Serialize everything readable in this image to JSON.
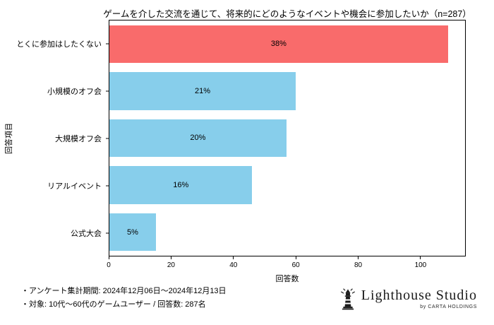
{
  "chart_data": {
    "type": "bar",
    "orientation": "horizontal",
    "title": "ゲームを介した交流を通じて、将来的にどのようなイベントや機会に参加したいか（n=287）",
    "xlabel": "回答数",
    "ylabel": "回答項目",
    "total_n": 287,
    "xlim": [
      0,
      114.5
    ],
    "xticks": [
      0,
      20,
      40,
      60,
      80,
      100
    ],
    "categories": [
      "とくに参加はしたくない",
      "小規模のオフ会",
      "大規模オフ会",
      "リアルイベント",
      "公式大会"
    ],
    "values": [
      109,
      60,
      57,
      46,
      15
    ],
    "percent_labels": [
      "38%",
      "21%",
      "20%",
      "16%",
      "5%"
    ],
    "bar_colors": [
      "#f96b6b",
      "#87ceeb",
      "#87ceeb",
      "#87ceeb",
      "#87ceeb"
    ],
    "grid": false,
    "legend": false
  },
  "footer": {
    "line1": "・アンケート集計期間: 2024年12月06日〜2024年12月13日",
    "line2": "・対象: 10代〜60代のゲームユーザー / 回答数: 287名"
  },
  "logo": {
    "brand": "Lighthouse Studio",
    "byline": "by CARTA HOLDINGS",
    "icon": "lighthouse-icon"
  }
}
